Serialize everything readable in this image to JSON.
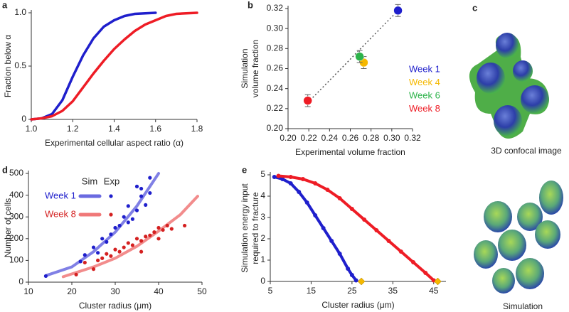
{
  "chart_data": [
    {
      "panel": "a",
      "type": "line",
      "xlabel": "Experimental cellular aspect ratio (α)",
      "ylabel": [
        "Fraction below α"
      ],
      "xlim": [
        1.0,
        1.8
      ],
      "xticks": [
        {
          "value": 1.0,
          "label": "1.0"
        },
        1.2,
        1.4,
        1.6,
        1.8
      ],
      "ylim": [
        0,
        1.0
      ],
      "yticks": [
        0,
        0.5,
        {
          "value": 1.0,
          "label": "1.0"
        }
      ],
      "series": [
        {
          "color": "#1f1fcc",
          "x": [
            1.0,
            1.05,
            1.1,
            1.15,
            1.2,
            1.25,
            1.3,
            1.35,
            1.4,
            1.45,
            1.5,
            1.6
          ],
          "values": [
            0,
            0.01,
            0.05,
            0.18,
            0.4,
            0.6,
            0.76,
            0.87,
            0.93,
            0.97,
            0.99,
            1.0
          ]
        },
        {
          "color": "#ee1c25",
          "x": [
            1.0,
            1.05,
            1.1,
            1.15,
            1.2,
            1.25,
            1.3,
            1.35,
            1.4,
            1.45,
            1.5,
            1.55,
            1.6,
            1.65,
            1.7,
            1.8
          ],
          "values": [
            0,
            0.01,
            0.03,
            0.08,
            0.17,
            0.3,
            0.43,
            0.55,
            0.66,
            0.75,
            0.83,
            0.89,
            0.93,
            0.97,
            0.99,
            1.0
          ]
        }
      ]
    },
    {
      "panel": "b",
      "type": "scatter",
      "xlabel": "Experimental volume fraction",
      "ylabel": [
        "Simulation",
        "volume fraction"
      ],
      "xlim": [
        0.2,
        0.32
      ],
      "xticks": [
        {
          "value": 0.2,
          "label": "0.20"
        },
        0.22,
        0.24,
        0.26,
        0.28,
        {
          "value": 0.3,
          "label": "0.30"
        },
        0.32
      ],
      "ylim": [
        0.2,
        0.32
      ],
      "yticks": [
        {
          "value": 0.2,
          "label": "0.20"
        },
        0.22,
        0.24,
        0.26,
        0.28,
        {
          "value": 0.3,
          "label": "0.30"
        },
        0.32
      ],
      "series": [
        {
          "name": "Week 1",
          "color": "#1f1fcc",
          "x": [
            0.306
          ],
          "values": [
            0.318
          ],
          "errors": [
            0.006
          ]
        },
        {
          "name": "Week 4",
          "color": "#f5b800",
          "x": [
            0.273
          ],
          "values": [
            0.266
          ],
          "errors": [
            0.006
          ]
        },
        {
          "name": "Week 6",
          "color": "#2db34a",
          "x": [
            0.269
          ],
          "values": [
            0.272
          ],
          "errors": [
            0.006
          ]
        },
        {
          "name": "Week 8",
          "color": "#ee1c25",
          "x": [
            0.219
          ],
          "values": [
            0.228
          ],
          "errors": [
            0.006
          ]
        }
      ],
      "fit_line": {
        "color": "#555555",
        "x": [
          0.219,
          0.306
        ],
        "values": [
          0.226,
          0.318
        ]
      }
    },
    {
      "panel": "d",
      "type": "scatter",
      "xlabel": "Cluster radius (μm)",
      "ylabel": [
        "Number of cells"
      ],
      "xlim": [
        10,
        50
      ],
      "xticks": [
        10,
        20,
        30,
        40,
        50
      ],
      "ylim": [
        0,
        500
      ],
      "yticks": [
        0,
        100,
        200,
        300,
        400,
        500
      ],
      "legend_headers": [
        "Sim",
        "Exp"
      ],
      "series": [
        {
          "name": "Week 1",
          "color": "#1f1fcc",
          "x": [
            14,
            22,
            23,
            25,
            26,
            27,
            28,
            29,
            30,
            31,
            32,
            33,
            33,
            34,
            35,
            36,
            36,
            37,
            38,
            38,
            35
          ],
          "values": [
            28,
            95,
            125,
            160,
            135,
            200,
            185,
            220,
            250,
            260,
            300,
            275,
            350,
            290,
            330,
            395,
            430,
            355,
            480,
            410,
            440
          ]
        },
        {
          "name": "Week 8",
          "color": "#d42020",
          "x": [
            21,
            23,
            25,
            26,
            27,
            28,
            29,
            30,
            31,
            32,
            33,
            34,
            35,
            36,
            37,
            38,
            39,
            40,
            41,
            42,
            43,
            46,
            40,
            36
          ],
          "values": [
            35,
            90,
            60,
            100,
            110,
            130,
            120,
            150,
            140,
            160,
            180,
            170,
            200,
            190,
            210,
            215,
            230,
            250,
            240,
            260,
            245,
            260,
            200,
            140
          ]
        }
      ],
      "fit_curves": [
        {
          "color": "#6a6ae0",
          "x": [
            14,
            20,
            25,
            30,
            35,
            40
          ],
          "values": [
            30,
            70,
            140,
            230,
            350,
            500
          ]
        },
        {
          "color": "#f07878",
          "x": [
            18,
            25,
            30,
            35,
            40,
            45,
            49
          ],
          "values": [
            25,
            70,
            110,
            165,
            235,
            310,
            395
          ]
        }
      ]
    },
    {
      "panel": "e",
      "type": "line",
      "dots": true,
      "xlabel": "Cluster radius (μm)",
      "ylabel": [
        "Simulation energy input",
        "required to fracture"
      ],
      "xlim": [
        5,
        48
      ],
      "xticks": [
        5,
        15,
        25,
        35,
        45
      ],
      "ylim": [
        0,
        5
      ],
      "yticks": [
        0,
        1,
        2,
        3,
        4,
        5
      ],
      "series": [
        {
          "color": "#1f1fcc",
          "x": [
            6,
            8,
            10,
            12,
            14,
            16,
            18,
            20,
            22,
            24,
            25,
            26
          ],
          "values": [
            4.9,
            4.8,
            4.6,
            4.2,
            3.7,
            3.1,
            2.5,
            1.9,
            1.3,
            0.6,
            0.3,
            0.05
          ]
        },
        {
          "color": "#ee1c25",
          "x": [
            7,
            10,
            13,
            16,
            19,
            22,
            25,
            28,
            31,
            34,
            37,
            40,
            43,
            45
          ],
          "values": [
            4.95,
            4.9,
            4.8,
            4.6,
            4.3,
            3.9,
            3.4,
            2.9,
            2.4,
            1.9,
            1.4,
            0.9,
            0.4,
            0.05
          ]
        }
      ],
      "markers": {
        "color": "#f5b800",
        "x": [
          27.3,
          46
        ],
        "values": [
          0,
          0
        ]
      }
    }
  ],
  "panel_c": {
    "panel": "c",
    "captions": [
      "3D confocal image",
      "Simulation"
    ]
  }
}
